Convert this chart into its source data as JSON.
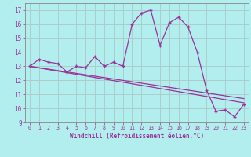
{
  "xlabel": "Windchill (Refroidissement éolien,°C)",
  "background_color": "#b2eeee",
  "grid_color": "#aacccc",
  "line_color": "#993399",
  "x_hours": [
    0,
    1,
    2,
    3,
    4,
    5,
    6,
    7,
    8,
    9,
    10,
    11,
    12,
    13,
    14,
    15,
    16,
    17,
    18,
    19,
    20,
    21,
    22,
    23
  ],
  "y_windchill": [
    13.0,
    13.5,
    13.3,
    13.2,
    12.6,
    13.0,
    12.9,
    13.7,
    13.0,
    13.3,
    13.0,
    16.0,
    16.8,
    17.0,
    14.5,
    16.1,
    16.5,
    15.8,
    14.0,
    11.3,
    9.8,
    9.9,
    9.4,
    10.3
  ],
  "trend_line1": [
    [
      0,
      13.0
    ],
    [
      23,
      10.7
    ]
  ],
  "trend_line2": [
    [
      0,
      13.0
    ],
    [
      23,
      10.4
    ]
  ],
  "ylim": [
    9,
    17.5
  ],
  "xlim": [
    -0.5,
    23.5
  ],
  "xticks": [
    0,
    1,
    2,
    3,
    4,
    5,
    6,
    7,
    8,
    9,
    10,
    11,
    12,
    13,
    14,
    15,
    16,
    17,
    18,
    19,
    20,
    21,
    22,
    23
  ],
  "yticks": [
    9,
    10,
    11,
    12,
    13,
    14,
    15,
    16,
    17
  ]
}
